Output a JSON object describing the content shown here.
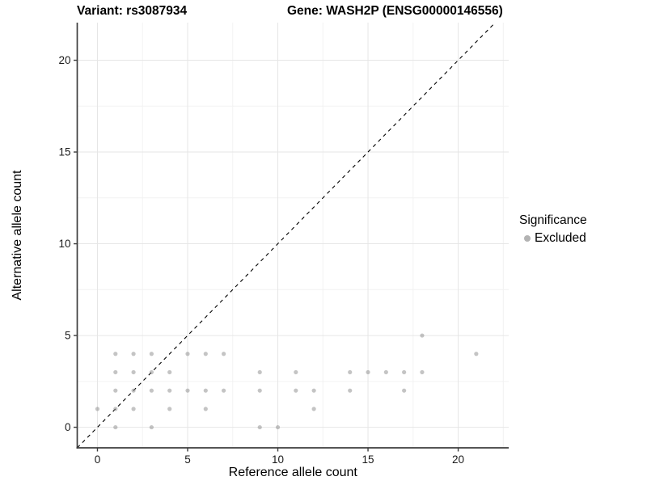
{
  "chart_data": {
    "type": "scatter",
    "titles": {
      "variant": "Variant: rs3087934",
      "gene": "Gene: WASH2P (ENSG00000146556)"
    },
    "xlabel": "Reference allele count",
    "ylabel": "Alternative allele count",
    "x_ticks": [
      0,
      5,
      10,
      15,
      20
    ],
    "y_ticks": [
      0,
      5,
      10,
      15,
      20
    ],
    "xlim": [
      -1.12,
      22.8
    ],
    "ylim": [
      -1.12,
      22.05
    ],
    "grid": {
      "major": true,
      "minor": true,
      "major_color": "#e6e6e6",
      "minor_color": "#f2f2f2"
    },
    "reference_line": {
      "type": "identity",
      "equation": "y = x",
      "style": "dashed",
      "color": "#000000"
    },
    "legend_position": "right",
    "series": [
      {
        "name": "Excluded",
        "color": "#8a8a8a",
        "opacity": 0.5,
        "points": [
          [
            1,
            0
          ],
          [
            3,
            0
          ],
          [
            9,
            0
          ],
          [
            10,
            0
          ],
          [
            0,
            1
          ],
          [
            1,
            1
          ],
          [
            2,
            1
          ],
          [
            4,
            1
          ],
          [
            6,
            1
          ],
          [
            12,
            1
          ],
          [
            1,
            2
          ],
          [
            2,
            2
          ],
          [
            3,
            2
          ],
          [
            4,
            2
          ],
          [
            5,
            2
          ],
          [
            6,
            2
          ],
          [
            7,
            2
          ],
          [
            9,
            2
          ],
          [
            11,
            2
          ],
          [
            12,
            2
          ],
          [
            14,
            2
          ],
          [
            17,
            2
          ],
          [
            1,
            3
          ],
          [
            2,
            3
          ],
          [
            3,
            3
          ],
          [
            4,
            3
          ],
          [
            9,
            3
          ],
          [
            11,
            3
          ],
          [
            14,
            3
          ],
          [
            15,
            3
          ],
          [
            16,
            3
          ],
          [
            17,
            3
          ],
          [
            18,
            3
          ],
          [
            1,
            4
          ],
          [
            2,
            4
          ],
          [
            3,
            4
          ],
          [
            5,
            4
          ],
          [
            6,
            4
          ],
          [
            7,
            4
          ],
          [
            21,
            4
          ],
          [
            18,
            5
          ]
        ]
      }
    ]
  },
  "legend": {
    "title": "Significance",
    "items": [
      {
        "label": "Excluded",
        "color": "#b3b3b3"
      }
    ]
  },
  "style": {
    "axis_color": "#3d3d3d",
    "tick_label_color": "#1a1a1a",
    "axis_title_color": "#000000"
  }
}
